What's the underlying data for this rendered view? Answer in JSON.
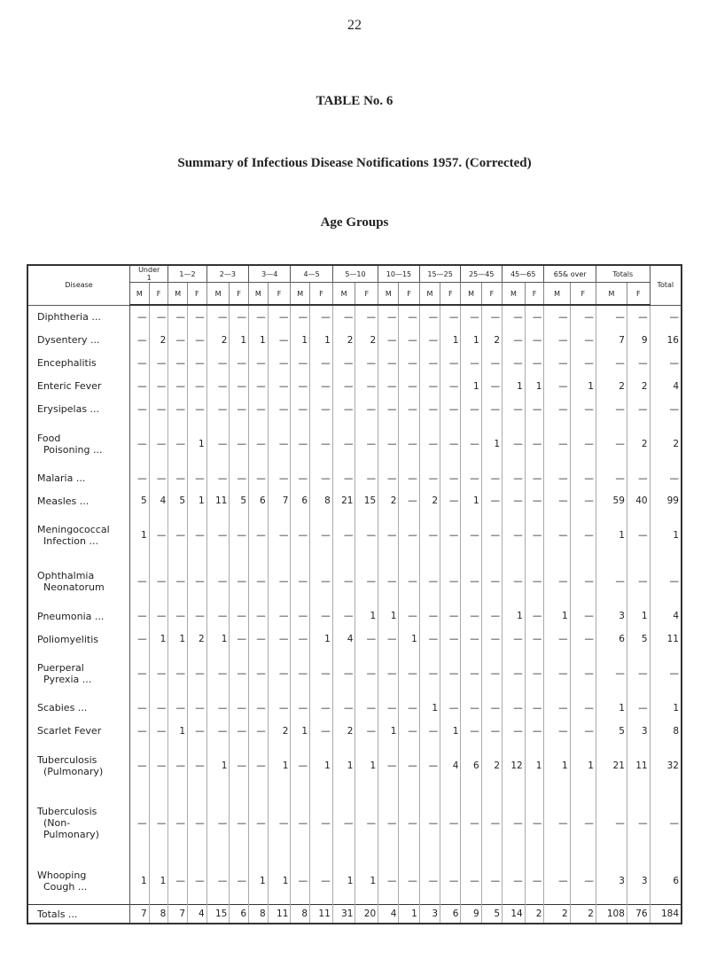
{
  "page_number": "22",
  "title": "TABLE No. 6",
  "subtitle": "Summary of Infectious Disease Notifications 1957. (Corrected)",
  "group_heading": "Age Groups",
  "table": {
    "disease_header": "Disease",
    "age_groups": [
      "Under\n1",
      "1—2",
      "2—3",
      "3—4",
      "4—5",
      "5—10",
      "10—15",
      "15—25",
      "25—45",
      "45—65",
      "65& over",
      "Totals"
    ],
    "total_header": "Total",
    "sub_headers": [
      "M",
      "F"
    ],
    "rows": [
      {
        "label": "Diphtheria ...",
        "cells": [
          "—",
          "—",
          "—",
          "—",
          "—",
          "—",
          "—",
          "—",
          "—",
          "—",
          "—",
          "—",
          "—",
          "—",
          "—",
          "—",
          "—",
          "—",
          "—",
          "—",
          "—",
          "—",
          "—",
          "—",
          "—"
        ]
      },
      {
        "label": "Dysentery ...",
        "cells": [
          "—",
          "2",
          "—",
          "—",
          "2",
          "1",
          "1",
          "—",
          "1",
          "1",
          "2",
          "2",
          "—",
          "—",
          "—",
          "1",
          "1",
          "2",
          "—",
          "—",
          "—",
          "—",
          "7",
          "9",
          "16"
        ]
      },
      {
        "label": "Encephalitis",
        "cells": [
          "—",
          "—",
          "—",
          "—",
          "—",
          "—",
          "—",
          "—",
          "—",
          "—",
          "—",
          "—",
          "—",
          "—",
          "—",
          "—",
          "—",
          "—",
          "—",
          "—",
          "—",
          "—",
          "—",
          "—",
          "—"
        ]
      },
      {
        "label": "Enteric Fever",
        "cells": [
          "—",
          "—",
          "—",
          "—",
          "—",
          "—",
          "—",
          "—",
          "—",
          "—",
          "—",
          "—",
          "—",
          "—",
          "—",
          "—",
          "1",
          "—",
          "1",
          "1",
          "—",
          "1",
          "2",
          "2",
          "4"
        ]
      },
      {
        "label": "Erysipelas ...",
        "cells": [
          "—",
          "—",
          "—",
          "—",
          "—",
          "—",
          "—",
          "—",
          "—",
          "—",
          "—",
          "—",
          "—",
          "—",
          "—",
          "—",
          "—",
          "—",
          "—",
          "—",
          "—",
          "—",
          "—",
          "—",
          "—"
        ]
      },
      {
        "label": "Food\n  Poisoning ...",
        "cells": [
          "—",
          "—",
          "—",
          "1",
          "—",
          "—",
          "—",
          "—",
          "—",
          "—",
          "—",
          "—",
          "—",
          "—",
          "—",
          "—",
          "—",
          "1",
          "—",
          "—",
          "—",
          "—",
          "—",
          "2",
          "2"
        ]
      },
      {
        "label": "Malaria ...",
        "cells": [
          "—",
          "—",
          "—",
          "—",
          "—",
          "—",
          "—",
          "—",
          "—",
          "—",
          "—",
          "—",
          "—",
          "—",
          "—",
          "—",
          "—",
          "—",
          "—",
          "—",
          "—",
          "—",
          "—",
          "—",
          "—"
        ]
      },
      {
        "label": "Measles ...",
        "cells": [
          "5",
          "4",
          "5",
          "1",
          "11",
          "5",
          "6",
          "7",
          "6",
          "8",
          "21",
          "15",
          "2",
          "—",
          "2",
          "—",
          "1",
          "—",
          "—",
          "—",
          "—",
          "—",
          "59",
          "40",
          "99"
        ]
      },
      {
        "label": "Meningococcal\n  Infection ...",
        "cells": [
          "1",
          "—",
          "—",
          "—",
          "—",
          "—",
          "—",
          "—",
          "—",
          "—",
          "—",
          "—",
          "—",
          "—",
          "—",
          "—",
          "—",
          "—",
          "—",
          "—",
          "—",
          "—",
          "1",
          "—",
          "1"
        ]
      },
      {
        "label": "Ophthalmia\n  Neonatorum",
        "cells": [
          "—",
          "—",
          "—",
          "—",
          "—",
          "—",
          "—",
          "—",
          "—",
          "—",
          "—",
          "—",
          "—",
          "—",
          "—",
          "—",
          "—",
          "—",
          "—",
          "—",
          "—",
          "—",
          "—",
          "—",
          "—"
        ]
      },
      {
        "label": "Pneumonia ...",
        "cells": [
          "—",
          "—",
          "—",
          "—",
          "—",
          "—",
          "—",
          "—",
          "—",
          "—",
          "—",
          "1",
          "1",
          "—",
          "—",
          "—",
          "—",
          "—",
          "1",
          "—",
          "1",
          "—",
          "3",
          "1",
          "4"
        ]
      },
      {
        "label": "Poliomyelitis",
        "cells": [
          "—",
          "1",
          "1",
          "2",
          "1",
          "—",
          "—",
          "—",
          "—",
          "1",
          "4",
          "—",
          "—",
          "1",
          "—",
          "—",
          "—",
          "—",
          "—",
          "—",
          "—",
          "—",
          "6",
          "5",
          "11"
        ]
      },
      {
        "label": "Puerperal\n  Pyrexia ...",
        "cells": [
          "—",
          "—",
          "—",
          "—",
          "—",
          "—",
          "—",
          "—",
          "—",
          "—",
          "—",
          "—",
          "—",
          "—",
          "—",
          "—",
          "—",
          "—",
          "—",
          "—",
          "—",
          "—",
          "—",
          "—",
          "—"
        ]
      },
      {
        "label": "Scabies ...",
        "cells": [
          "—",
          "—",
          "—",
          "—",
          "—",
          "—",
          "—",
          "—",
          "—",
          "—",
          "—",
          "—",
          "—",
          "—",
          "1",
          "—",
          "—",
          "—",
          "—",
          "—",
          "—",
          "—",
          "1",
          "—",
          "1"
        ]
      },
      {
        "label": "Scarlet Fever",
        "cells": [
          "—",
          "—",
          "1",
          "—",
          "—",
          "—",
          "—",
          "2",
          "1",
          "—",
          "2",
          "—",
          "1",
          "—",
          "—",
          "1",
          "—",
          "—",
          "—",
          "—",
          "—",
          "—",
          "5",
          "3",
          "8"
        ]
      },
      {
        "label": "Tuberculosis\n  (Pulmonary)",
        "cells": [
          "—",
          "—",
          "—",
          "—",
          "1",
          "—",
          "—",
          "1",
          "—",
          "1",
          "1",
          "1",
          "—",
          "—",
          "—",
          "4",
          "6",
          "2",
          "12",
          "1",
          "1",
          "1",
          "21",
          "11",
          "32"
        ]
      },
      {
        "label": "Tuberculosis\n  (Non-\n  Pulmonary)",
        "cells": [
          "—",
          "—",
          "—",
          "—",
          "—",
          "—",
          "—",
          "—",
          "—",
          "—",
          "—",
          "—",
          "—",
          "—",
          "—",
          "—",
          "—",
          "—",
          "—",
          "—",
          "—",
          "—",
          "—",
          "—",
          "—"
        ]
      },
      {
        "label": "Whooping\n  Cough ...",
        "cells": [
          "1",
          "1",
          "—",
          "—",
          "—",
          "—",
          "1",
          "1",
          "—",
          "—",
          "1",
          "1",
          "—",
          "—",
          "—",
          "—",
          "—",
          "—",
          "—",
          "—",
          "—",
          "—",
          "3",
          "3",
          "6"
        ]
      }
    ],
    "totals_row": {
      "label": "Totals ...",
      "cells": [
        "7",
        "8",
        "7",
        "4",
        "15",
        "6",
        "8",
        "11",
        "8",
        "11",
        "31",
        "20",
        "4",
        "1",
        "3",
        "6",
        "9",
        "5",
        "14",
        "2",
        "2",
        "2",
        "108",
        "76",
        "184"
      ]
    }
  }
}
